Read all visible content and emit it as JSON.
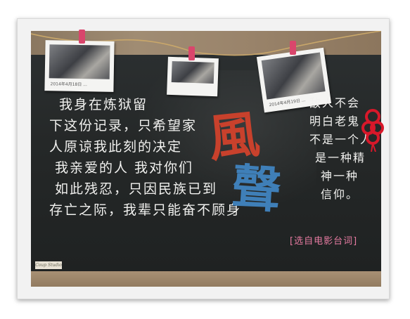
{
  "photos": [
    {
      "caption": "2014年4月18日 ..."
    },
    {
      "caption": ""
    },
    {
      "caption": "2014年4月19日 ..."
    }
  ],
  "poem_lines": [
    "我身在炼狱留",
    "下这份记录，只希望家",
    "人原谅我此刻的决定",
    "我亲爱的人 我对你们",
    "如此残忍，只因民族已到",
    "存亡之际，我辈只能奋不顾身"
  ],
  "side_lines": [
    "敌人不会",
    "明白老鬼",
    "不是一个人",
    "是一种精",
    "神一种",
    "信仰。"
  ],
  "title": {
    "char1": "風",
    "char2": "聲"
  },
  "source_note": "[选自电影台词]",
  "logo_text": "Coup Studio",
  "colors": {
    "chalk": "#f1f1ef",
    "title_red": "#c8412c",
    "title_blue": "#3f7fb8",
    "note_pink": "#e47aa0",
    "clip_pink": "#d9466c",
    "knot_red": "#d8182a"
  }
}
